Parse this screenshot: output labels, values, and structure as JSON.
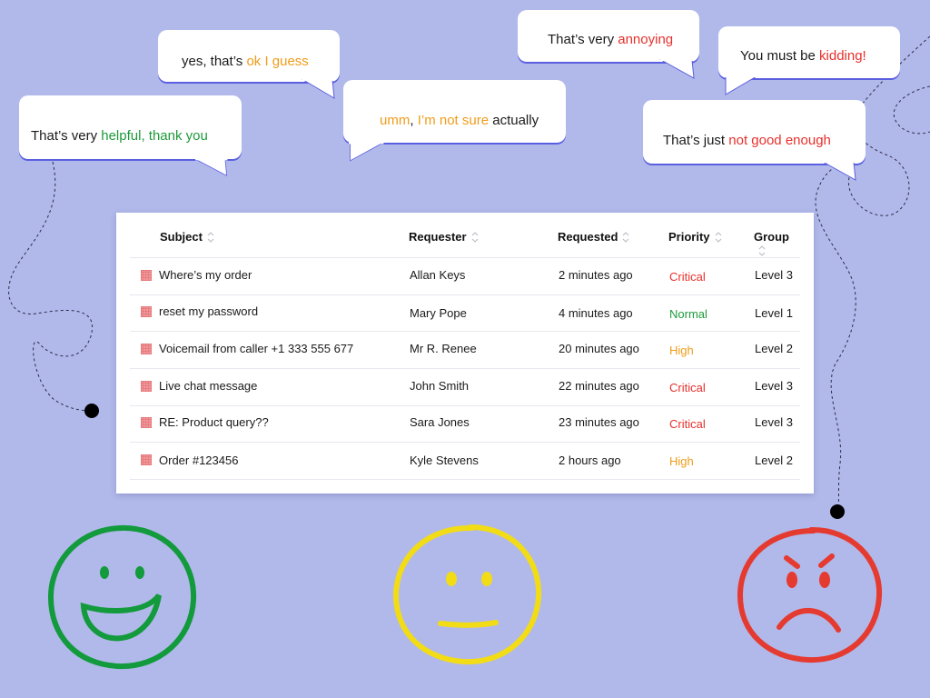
{
  "bubbles": {
    "helpful": {
      "plain": "That’s very ",
      "accent": "helpful, thank you",
      "accent_color": "#1d9a3b"
    },
    "okguess": {
      "plain": "yes, that’s ",
      "accent": "ok I guess",
      "accent_color": "#ef9c1b"
    },
    "notsure": {
      "accent1": "umm",
      "sep": ", ",
      "accent2": "I’m not sure",
      "plain": " actually",
      "accent_color": "#ef9c1b"
    },
    "annoying": {
      "plain": "That’s very ",
      "accent": "annoying",
      "accent_color": "#e8302b"
    },
    "kidding": {
      "plain": "You must be ",
      "accent": "kidding!",
      "accent_color": "#e8302b"
    },
    "notgood": {
      "plain": "That’s just ",
      "accent": "not good enough",
      "accent_color": "#e8302b"
    }
  },
  "table": {
    "columns": [
      "Subject",
      "Requester",
      "Requested",
      "Priority",
      "Group"
    ],
    "rows": [
      {
        "subject": "Where’s my order",
        "requester": "Allan Keys",
        "requested": "2 minutes ago",
        "priority": "Critical",
        "group": "Level 3"
      },
      {
        "subject": "reset my password",
        "requester": "Mary Pope",
        "requested": "4 minutes ago",
        "priority": "Normal",
        "group": "Level 1"
      },
      {
        "subject": "Voicemail from caller +1 333 555 677",
        "requester": "Mr R. Renee",
        "requested": "20 minutes ago",
        "priority": "High",
        "group": "Level 2"
      },
      {
        "subject": "Live chat message",
        "requester": "John Smith",
        "requested": "22 minutes ago",
        "priority": "Critical",
        "group": "Level 3"
      },
      {
        "subject": "RE: Product query??",
        "requester": "Sara Jones",
        "requested": "23 minutes ago",
        "priority": "Critical",
        "group": "Level 3"
      },
      {
        "subject": "Order #123456",
        "requester": "Kyle Stevens",
        "requested": "2 hours ago",
        "priority": "High",
        "group": "Level 2"
      }
    ]
  },
  "priority_colors": {
    "Critical": "#e8302b",
    "Normal": "#1d9a3b",
    "High": "#ef9c1b"
  },
  "faces": [
    "happy-face-icon",
    "neutral-face-icon",
    "angry-face-icon"
  ],
  "colors": {
    "background": "#b1b9ea",
    "bubble_shadow": "#5a5fe0",
    "happy": "#129a3c",
    "neutral": "#f2dc16",
    "angry": "#e53a30"
  }
}
